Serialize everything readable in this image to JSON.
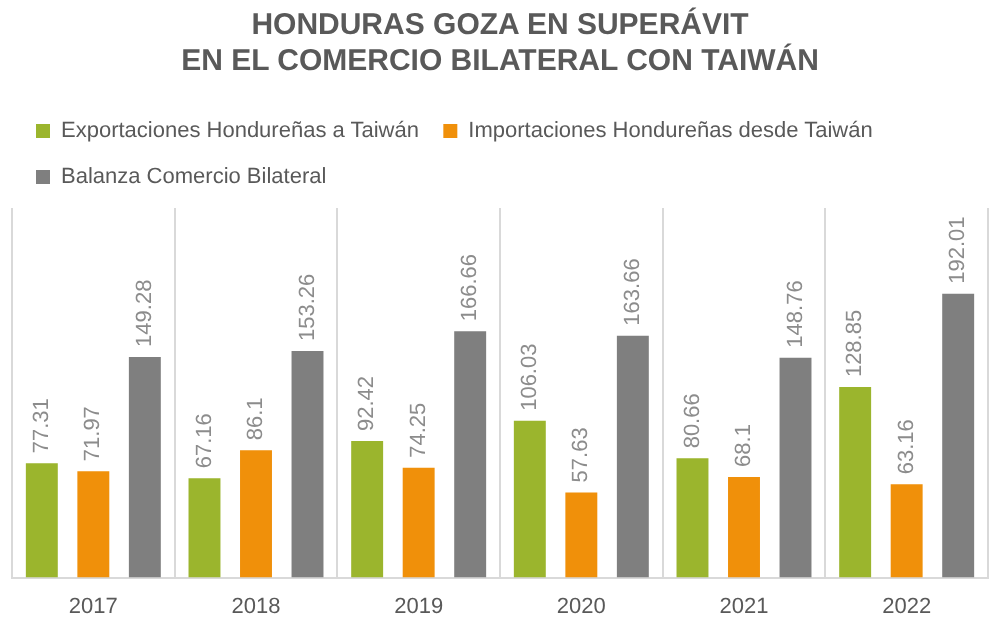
{
  "chart_data": {
    "type": "bar",
    "title": "HONDURAS GOZA EN SUPERÁVIT\nEN EL COMERCIO BILATERAL CON TAIWÁN",
    "categories": [
      "2017",
      "2018",
      "2019",
      "2020",
      "2021",
      "2022"
    ],
    "series": [
      {
        "name": "Exportaciones Hondureñas a Taiwán",
        "color": "#9bb52d",
        "values": [
          77.31,
          67.16,
          92.42,
          106.03,
          80.66,
          128.85
        ]
      },
      {
        "name": "Importaciones Hondureñas desde Taiwán",
        "color": "#f0900a",
        "values": [
          71.97,
          86.1,
          74.25,
          57.63,
          68.1,
          63.16
        ]
      },
      {
        "name": "Balanza Comercio Bilateral",
        "color": "#7f7f7f",
        "values": [
          149.28,
          153.26,
          166.66,
          163.66,
          148.76,
          192.01
        ]
      }
    ],
    "data_labels": true,
    "grid": "x",
    "legend": "top left"
  }
}
